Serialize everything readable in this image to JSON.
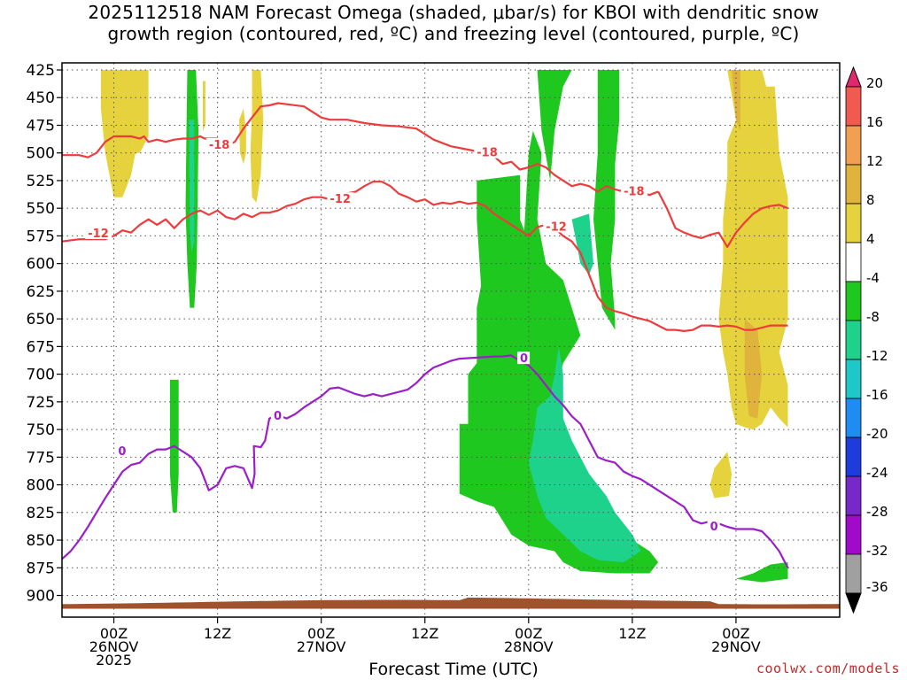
{
  "title": {
    "line1": "2025112518 NAM Forecast Omega (shaded, μbar/s) for KBOI with dendritic snow",
    "line2": "growth region (contoured, red, ºC) and freezing level (contoured, purple, ºC)"
  },
  "credit": "coolwx.com/models",
  "chart_data": {
    "type": "heatmap",
    "title": "2025112518 NAM Forecast Omega (shaded, μbar/s) for KBOI with dendritic snow growth region (contoured, red, ºC) and freezing level (contoured, purple, ºC)",
    "xlabel": "Forecast Time (UTC)",
    "ylabel": "",
    "x_range_hours": [
      -6,
      84
    ],
    "y_range_hPa": [
      425,
      910
    ],
    "y_ticks": [
      "425",
      "450",
      "475",
      "500",
      "525",
      "550",
      "575",
      "600",
      "625",
      "650",
      "675",
      "700",
      "725",
      "750",
      "775",
      "800",
      "825",
      "850",
      "875",
      "900"
    ],
    "x_ticks": [
      {
        "hour": 0,
        "lines": [
          "00Z",
          "26NOV",
          "2025"
        ]
      },
      {
        "hour": 12,
        "lines": [
          "12Z"
        ]
      },
      {
        "hour": 24,
        "lines": [
          "00Z",
          "27NOV"
        ]
      },
      {
        "hour": 36,
        "lines": [
          "12Z"
        ]
      },
      {
        "hour": 48,
        "lines": [
          "00Z",
          "28NOV"
        ]
      },
      {
        "hour": 60,
        "lines": [
          "12Z"
        ]
      },
      {
        "hour": 72,
        "lines": [
          "00Z",
          "29NOV"
        ]
      }
    ],
    "grid": true,
    "colorbar": {
      "labels": [
        "20",
        "16",
        "12",
        "8",
        "4",
        "-4",
        "-8",
        "-12",
        "-16",
        "-20",
        "-24",
        "-28",
        "-32",
        "-36"
      ],
      "colors": [
        "#e0286e",
        "#f05a50",
        "#f0a050",
        "#e0b43c",
        "#e6d23c",
        "#ffffff",
        "#1ec81e",
        "#1ed28c",
        "#1ec8c8",
        "#1e8cf0",
        "#1e3cdc",
        "#7828c8",
        "#a00ac8",
        "#a0a0a0",
        "#000000"
      ]
    },
    "ground_color": "#a0522d",
    "contours": [
      {
        "name": "-18",
        "color": "#ee3b3b",
        "points": [
          [
            -6,
            502
          ],
          [
            -4,
            502
          ],
          [
            -3,
            504
          ],
          [
            -2,
            500
          ],
          [
            -1,
            490
          ],
          [
            0,
            485
          ],
          [
            2,
            485
          ],
          [
            3,
            487
          ],
          [
            3.5,
            485
          ],
          [
            4,
            490
          ],
          [
            5,
            488
          ],
          [
            6,
            490
          ],
          [
            7,
            488
          ],
          [
            8,
            487
          ],
          [
            9,
            487
          ],
          [
            10,
            485
          ],
          [
            10.5,
            487
          ],
          [
            12,
            487
          ],
          [
            13,
            494
          ],
          [
            14,
            490
          ],
          [
            15,
            478
          ],
          [
            16,
            468
          ],
          [
            17,
            458
          ],
          [
            18,
            457
          ],
          [
            19,
            455
          ],
          [
            20,
            456
          ],
          [
            22,
            458
          ],
          [
            24,
            468
          ],
          [
            25,
            470
          ],
          [
            27,
            470
          ],
          [
            29,
            473
          ],
          [
            31,
            475
          ],
          [
            33,
            476
          ],
          [
            35,
            478
          ],
          [
            37,
            488
          ],
          [
            39,
            494
          ],
          [
            41,
            497
          ],
          [
            43,
            500
          ],
          [
            44,
            503
          ],
          [
            45,
            510
          ],
          [
            46,
            508
          ],
          [
            47,
            515
          ],
          [
            48,
            513
          ],
          [
            49,
            510
          ],
          [
            50,
            513
          ],
          [
            51,
            520
          ],
          [
            52,
            525
          ],
          [
            53,
            530
          ],
          [
            54,
            528
          ],
          [
            55,
            530
          ],
          [
            56,
            535
          ],
          [
            57,
            530
          ],
          [
            58,
            533
          ],
          [
            59,
            535
          ],
          [
            61,
            536
          ],
          [
            62,
            538
          ],
          [
            63,
            535
          ]
        ],
        "label_hour": 11,
        "label_hPa": 493,
        "label_hour2": 42,
        "label_hPa2": 500,
        "label_hour3": 59,
        "label_hPa3": 535
      },
      {
        "name": "-12",
        "color": "#ee3b3b",
        "points": [
          [
            -6,
            580
          ],
          [
            -4,
            578
          ],
          [
            -1,
            578
          ],
          [
            0,
            575
          ],
          [
            1,
            570
          ],
          [
            2,
            572
          ],
          [
            3,
            565
          ],
          [
            4,
            560
          ],
          [
            5,
            565
          ],
          [
            6,
            560
          ],
          [
            7,
            568
          ],
          [
            8,
            560
          ],
          [
            9,
            555
          ],
          [
            10,
            552
          ],
          [
            11,
            556
          ],
          [
            12,
            552
          ],
          [
            13,
            558
          ],
          [
            14,
            560
          ],
          [
            15,
            555
          ],
          [
            16,
            558
          ],
          [
            17,
            554
          ],
          [
            18,
            554
          ],
          [
            19,
            552
          ],
          [
            20,
            548
          ],
          [
            21,
            546
          ],
          [
            22,
            542
          ],
          [
            23,
            540
          ],
          [
            24,
            540
          ],
          [
            25,
            542
          ],
          [
            26,
            538
          ],
          [
            28,
            535
          ],
          [
            29,
            530
          ],
          [
            30,
            526
          ],
          [
            31,
            526
          ],
          [
            32,
            530
          ],
          [
            33,
            537
          ],
          [
            34,
            540
          ],
          [
            35,
            544
          ],
          [
            36,
            542
          ],
          [
            37,
            547
          ],
          [
            38,
            545
          ],
          [
            39,
            546
          ],
          [
            40,
            544
          ],
          [
            41,
            546
          ],
          [
            42,
            545
          ],
          [
            43,
            548
          ],
          [
            44,
            555
          ],
          [
            45,
            560
          ],
          [
            46,
            565
          ],
          [
            47,
            570
          ],
          [
            48,
            575
          ],
          [
            49,
            567
          ],
          [
            50,
            565
          ],
          [
            51,
            568
          ],
          [
            52,
            575
          ],
          [
            53,
            580
          ],
          [
            54,
            590
          ],
          [
            55,
            610
          ],
          [
            56,
            630
          ],
          [
            57,
            640
          ],
          [
            58,
            643
          ],
          [
            59,
            645
          ],
          [
            60,
            648
          ],
          [
            61,
            650
          ],
          [
            62,
            652
          ],
          [
            63,
            656
          ],
          [
            64,
            660
          ],
          [
            65,
            660
          ],
          [
            66,
            661
          ],
          [
            67,
            660
          ],
          [
            68,
            656
          ],
          [
            69,
            656
          ],
          [
            70,
            657
          ],
          [
            71,
            656
          ],
          [
            72,
            657
          ],
          [
            73,
            660
          ],
          [
            74,
            660
          ],
          [
            75,
            658
          ],
          [
            76,
            656
          ],
          [
            77,
            656
          ],
          [
            78,
            656
          ]
        ],
        "label_hour": -3,
        "label_hPa": 573,
        "label_hour2": 25,
        "label_hPa2": 542,
        "label_hour3": 50,
        "label_hPa3": 567
      },
      {
        "name": "-18 (upper right)",
        "color": "#ee3b3b",
        "points": [
          [
            63,
            535
          ],
          [
            64,
            550
          ],
          [
            65,
            568
          ],
          [
            66,
            572
          ],
          [
            67,
            575
          ],
          [
            68,
            577
          ],
          [
            69,
            574
          ],
          [
            70,
            572
          ],
          [
            71,
            585
          ],
          [
            72,
            572
          ],
          [
            73,
            563
          ],
          [
            74,
            555
          ],
          [
            75,
            550
          ],
          [
            76,
            548
          ],
          [
            77,
            547
          ],
          [
            78,
            550
          ]
        ]
      },
      {
        "name": "0",
        "color": "#9b1fc8",
        "points": [
          [
            -6,
            867
          ],
          [
            -5,
            860
          ],
          [
            -4,
            850
          ],
          [
            -3,
            838
          ],
          [
            -2,
            825
          ],
          [
            -1,
            812
          ],
          [
            0,
            800
          ],
          [
            1,
            788
          ],
          [
            2,
            782
          ],
          [
            3,
            780
          ],
          [
            4,
            772
          ],
          [
            5,
            768
          ],
          [
            6,
            768
          ],
          [
            7,
            765
          ],
          [
            8,
            770
          ],
          [
            9,
            775
          ],
          [
            10,
            785
          ],
          [
            11,
            805
          ],
          [
            12,
            800
          ],
          [
            13,
            785
          ],
          [
            14,
            783
          ],
          [
            15,
            785
          ],
          [
            16,
            803
          ],
          [
            16.3,
            790
          ],
          [
            16.2,
            765
          ],
          [
            17,
            766
          ],
          [
            17.5,
            760
          ],
          [
            18,
            740
          ],
          [
            19,
            737
          ],
          [
            20,
            740
          ],
          [
            21,
            736
          ],
          [
            22,
            730
          ],
          [
            23,
            725
          ],
          [
            24,
            720
          ],
          [
            25,
            713
          ],
          [
            26,
            712
          ],
          [
            27,
            715
          ],
          [
            28,
            718
          ],
          [
            29,
            720
          ],
          [
            30,
            718
          ],
          [
            31,
            720
          ],
          [
            32,
            718
          ],
          [
            33,
            716
          ],
          [
            34,
            714
          ],
          [
            35,
            708
          ],
          [
            36,
            700
          ],
          [
            37,
            694
          ],
          [
            38,
            691
          ],
          [
            39,
            688
          ],
          [
            40,
            686
          ],
          [
            42,
            685
          ],
          [
            44,
            684
          ],
          [
            45,
            684
          ],
          [
            46,
            683
          ],
          [
            47,
            688
          ],
          [
            48,
            692
          ],
          [
            49,
            700
          ],
          [
            50,
            710
          ],
          [
            51,
            720
          ],
          [
            52,
            728
          ],
          [
            53,
            738
          ],
          [
            54,
            745
          ],
          [
            55,
            760
          ],
          [
            56,
            775
          ],
          [
            57,
            778
          ],
          [
            58,
            780
          ],
          [
            59,
            788
          ],
          [
            60,
            792
          ],
          [
            61,
            795
          ],
          [
            62,
            800
          ],
          [
            63,
            805
          ],
          [
            64,
            810
          ],
          [
            65,
            815
          ],
          [
            66,
            820
          ],
          [
            67,
            832
          ],
          [
            68,
            835
          ],
          [
            69,
            833
          ],
          [
            70,
            835
          ],
          [
            71,
            838
          ],
          [
            72,
            840
          ],
          [
            73,
            840
          ],
          [
            74,
            840
          ],
          [
            75,
            842
          ],
          [
            76,
            850
          ],
          [
            77,
            860
          ],
          [
            78,
            875
          ]
        ],
        "label_hour": 0.5,
        "label_hPa": 770,
        "label_hour2": 18.5,
        "label_hPa2": 738,
        "label_hour3": 47,
        "label_hPa3": 686,
        "label_hour4": 69,
        "label_hPa4": 838
      }
    ]
  }
}
